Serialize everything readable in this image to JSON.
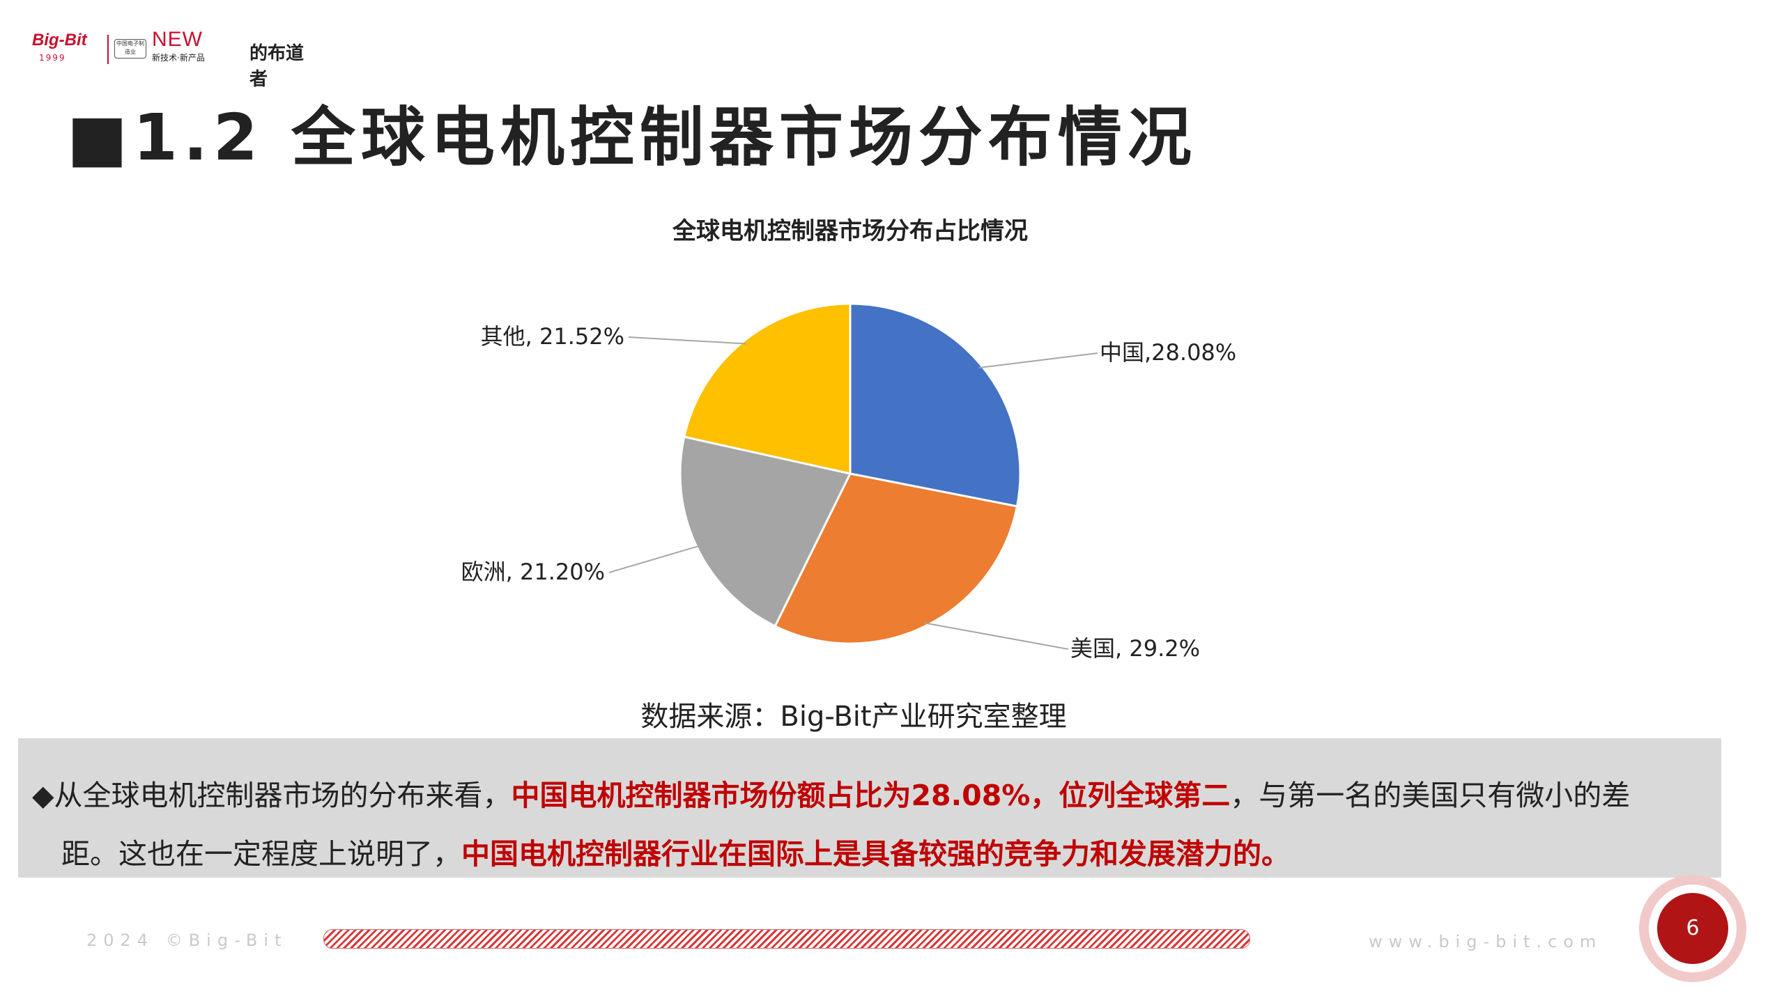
{
  "header": {
    "logo_brand": "Big-Bit",
    "logo_year": "1999",
    "logo_cert": "中国电子制造业",
    "logo_new": "NEW",
    "logo_sub": "新技术·新产品",
    "logo_tail": "的布道者"
  },
  "slide": {
    "title": "■1.2 全球电机控制器市场分布情况",
    "source": "数据来源：Big-Bit产业研究室整理",
    "note": {
      "line1_a": "◆从全球电机控制器市场的分布来看，",
      "line1_red": "中国电机控制器市场份额占比为28.08%，位列全球第二",
      "line1_b": "，与第一名的美国只有微小的差",
      "line2_a": "距。这也在一定程度上说明了，",
      "line2_red": "中国电机控制器行业在国际上是具备较强的竞争力和发展潜力的。"
    },
    "page_number": "6"
  },
  "footer": {
    "left": "2024 ©Big-Bit",
    "right": "www.big-bit.com"
  },
  "chart_data": {
    "type": "pie",
    "title": "全球电机控制器市场分布占比情况",
    "slices": [
      {
        "name": "中国",
        "value": 28.08,
        "label": "中国,28.08%",
        "color": "#4472c4"
      },
      {
        "name": "美国",
        "value": 29.2,
        "label": "美国, 29.2%",
        "color": "#ed7d31"
      },
      {
        "name": "欧洲",
        "value": 21.2,
        "label": "欧洲, 21.20%",
        "color": "#a5a5a5"
      },
      {
        "name": "其他",
        "value": 21.52,
        "label": "其他, 21.52%",
        "color": "#ffc000"
      }
    ],
    "start_angle_deg": 0,
    "direction": "clockwise",
    "legend": "none"
  },
  "colors": {
    "accent_red": "#c00000",
    "brand_red": "#c8102e",
    "note_bg": "#d9d9d9"
  }
}
